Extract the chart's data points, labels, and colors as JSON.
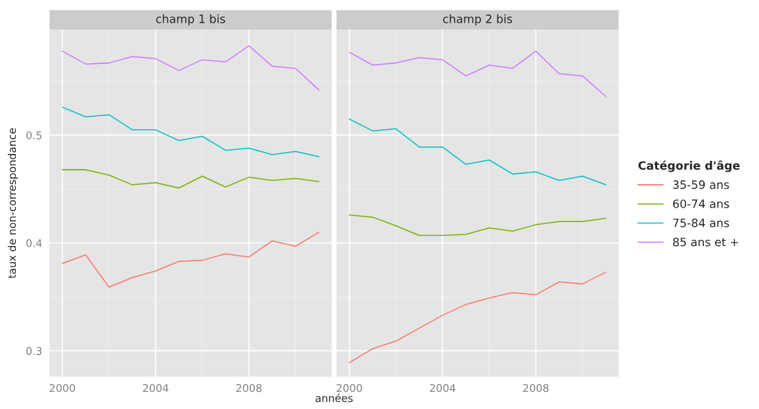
{
  "chart_data": [
    {
      "type": "line",
      "title": "champ 1 bis",
      "xlabel": "années",
      "ylabel": "taux de non-correspondance",
      "x": [
        2000,
        2001,
        2002,
        2003,
        2004,
        2005,
        2006,
        2007,
        2008,
        2009,
        2010,
        2011
      ],
      "series": [
        {
          "name": "35-59 ans",
          "color": "#f8766d",
          "values": [
            0.381,
            0.389,
            0.359,
            0.368,
            0.374,
            0.383,
            0.384,
            0.39,
            0.387,
            0.402,
            0.397,
            0.41
          ]
        },
        {
          "name": "60-74 ans",
          "color": "#7cae00",
          "values": [
            0.468,
            0.468,
            0.463,
            0.454,
            0.456,
            0.451,
            0.462,
            0.452,
            0.461,
            0.458,
            0.46,
            0.457
          ]
        },
        {
          "name": "75-84 ans",
          "color": "#00bfc4",
          "values": [
            0.526,
            0.517,
            0.519,
            0.505,
            0.505,
            0.495,
            0.499,
            0.486,
            0.488,
            0.482,
            0.485,
            0.48
          ]
        },
        {
          "name": "85 ans et +",
          "color": "#c77cff",
          "values": [
            0.578,
            0.566,
            0.567,
            0.573,
            0.571,
            0.56,
            0.57,
            0.568,
            0.583,
            0.564,
            0.562,
            0.542
          ]
        }
      ],
      "xlim": [
        1999.45,
        2011.55
      ],
      "ylim": [
        0.276,
        0.598
      ],
      "xticks": [
        2000,
        2004,
        2008
      ],
      "yticks": [
        0.3,
        0.4,
        0.5
      ],
      "grid": true,
      "legend_title": "Catégorie d'âge",
      "legend": "right"
    },
    {
      "type": "line",
      "title": "champ 2 bis",
      "x": [
        2000,
        2001,
        2002,
        2003,
        2004,
        2005,
        2006,
        2007,
        2008,
        2009,
        2010,
        2011
      ],
      "series": [
        {
          "color": "#f8766d",
          "values": [
            0.289,
            0.302,
            0.309,
            0.321,
            0.333,
            0.343,
            0.349,
            0.354,
            0.352,
            0.364,
            0.362,
            0.373
          ]
        },
        {
          "color": "#7cae00",
          "values": [
            0.426,
            0.424,
            0.416,
            0.407,
            0.407,
            0.408,
            0.414,
            0.411,
            0.417,
            0.42,
            0.42,
            0.423
          ]
        },
        {
          "color": "#00bfc4",
          "values": [
            0.515,
            0.504,
            0.506,
            0.489,
            0.489,
            0.473,
            0.477,
            0.464,
            0.466,
            0.458,
            0.462,
            0.454
          ]
        },
        {
          "color": "#c77cff",
          "values": [
            0.577,
            0.565,
            0.567,
            0.572,
            0.57,
            0.555,
            0.565,
            0.562,
            0.578,
            0.557,
            0.555,
            0.536
          ]
        }
      ],
      "xlim": [
        1999.45,
        2011.55
      ],
      "ylim": [
        0.276,
        0.598
      ],
      "xticks": [
        2000,
        2004,
        2008
      ],
      "yticks": [
        0.3,
        0.4,
        0.5
      ],
      "grid": true,
      "tick_labels": "x"
    }
  ]
}
